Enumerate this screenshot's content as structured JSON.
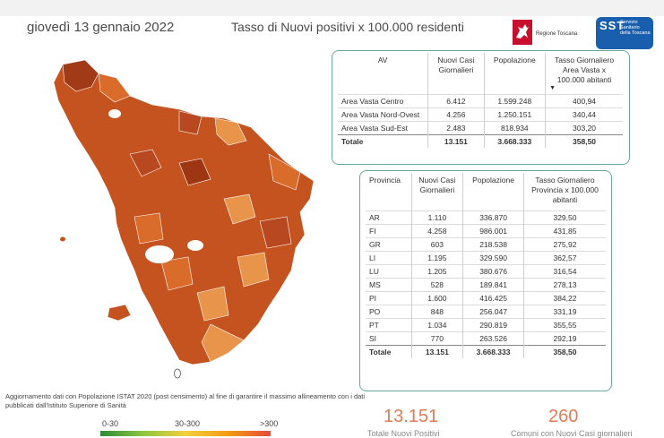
{
  "header": {
    "date": "giovedì 13 gennaio 2022",
    "title": "Tasso di Nuovi positivi x 100.000 residenti",
    "logo_regione": "Regione Toscana",
    "logo_sst_big": "SST",
    "logo_sst_small": "Servizio Sanitario della Toscana"
  },
  "area_table": {
    "headers": [
      "AV",
      "Nuovi Casi Giornalieri",
      "Popolazione",
      "Tasso Giornaliero Area Vasta x 100.000 abitanti"
    ],
    "sort_icon": "sort-down-icon",
    "rows": [
      [
        "Area Vasta Centro",
        "6.412",
        "1.599.248",
        "400,94"
      ],
      [
        "Area Vasta Nord-Ovest",
        "4.256",
        "1.250.151",
        "340,44"
      ],
      [
        "Area Vasta Sud-Est",
        "2.483",
        "818.934",
        "303,20"
      ]
    ],
    "total": [
      "Totale",
      "13.151",
      "3.668.333",
      "358,50"
    ]
  },
  "province_table": {
    "headers": [
      "Provincia",
      "Nuovi Casi Giornalieri",
      "Popolazione",
      "Tasso Giornaliero Provincia x 100.000 abitanti"
    ],
    "rows": [
      [
        "AR",
        "1.110",
        "336.870",
        "329,50"
      ],
      [
        "FI",
        "4.258",
        "986.001",
        "431,85"
      ],
      [
        "GR",
        "603",
        "218.538",
        "275,92"
      ],
      [
        "LI",
        "1.195",
        "329.590",
        "362,57"
      ],
      [
        "LU",
        "1.205",
        "380.676",
        "316,54"
      ],
      [
        "MS",
        "528",
        "189.841",
        "278,13"
      ],
      [
        "PI",
        "1.600",
        "416.425",
        "384,22"
      ],
      [
        "PO",
        "848",
        "256.047",
        "331,19"
      ],
      [
        "PT",
        "1.034",
        "290.819",
        "355,55"
      ],
      [
        "SI",
        "770",
        "263.526",
        "292,19"
      ]
    ],
    "total": [
      "Totale",
      "13.151",
      "3.668.333",
      "358,50"
    ]
  },
  "note": "Aggiornamento dati con Popolazione ISTAT 2020 (post censimento) al fine di garantire il massimo allineamento con i dati pubblicati dall'Istituto Superiore di Sanità",
  "legend": {
    "low": "0-30",
    "mid": "30-300",
    "high": ">300"
  },
  "kpis": [
    {
      "value": "13.151",
      "label": "Totale Nuovi Positivi"
    },
    {
      "value": "260",
      "label": "Comuni con Nuovi Casi giornalieri"
    }
  ],
  "colors": {
    "accent": "#e07b57",
    "panel_border": "#66a99a",
    "map_dark": "#b8481f",
    "map_mid": "#d96b2b",
    "map_light": "#e8944a"
  }
}
